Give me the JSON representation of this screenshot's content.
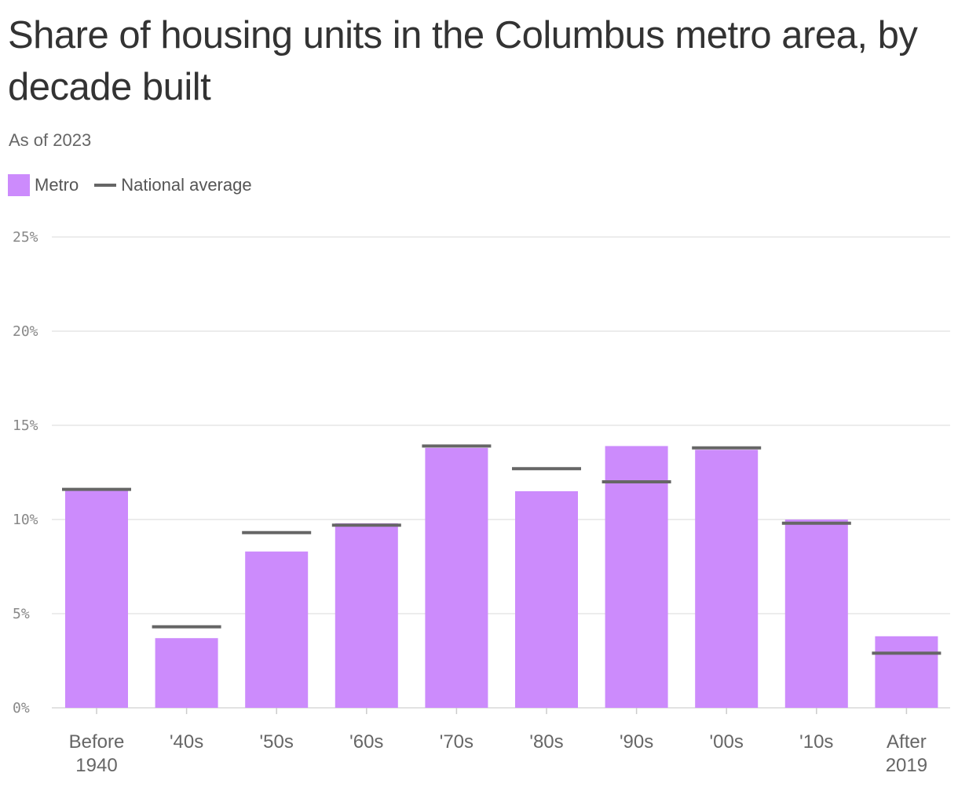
{
  "chart_data": {
    "type": "bar",
    "title": "Share of housing units in the Columbus metro area, by decade built",
    "subtitle": "As of 2023",
    "categories": [
      [
        "Before",
        "1940"
      ],
      [
        "'40s"
      ],
      [
        "'50s"
      ],
      [
        "'60s"
      ],
      [
        "'70s"
      ],
      [
        "'80s"
      ],
      [
        "'90s"
      ],
      [
        "'00s"
      ],
      [
        "'10s"
      ],
      [
        "After",
        "2019"
      ]
    ],
    "series": [
      {
        "name": "Metro",
        "values": [
          11.6,
          3.7,
          8.3,
          9.8,
          13.8,
          11.5,
          13.9,
          13.7,
          10.0,
          3.8
        ]
      },
      {
        "name": "National average",
        "values": [
          11.6,
          4.3,
          9.3,
          9.7,
          13.9,
          12.7,
          12.0,
          13.8,
          9.8,
          2.9
        ]
      }
    ],
    "ylim": [
      0,
      25
    ],
    "yticks": [
      0,
      5,
      10,
      15,
      20,
      25
    ],
    "ytick_labels": [
      "0%",
      "5%",
      "10%",
      "15%",
      "20%",
      "25%"
    ],
    "grid": true,
    "legend_position": "top-left",
    "colors": {
      "metro": "#cc8bfc",
      "national": "#666666",
      "grid": "#e6e6e6"
    }
  }
}
